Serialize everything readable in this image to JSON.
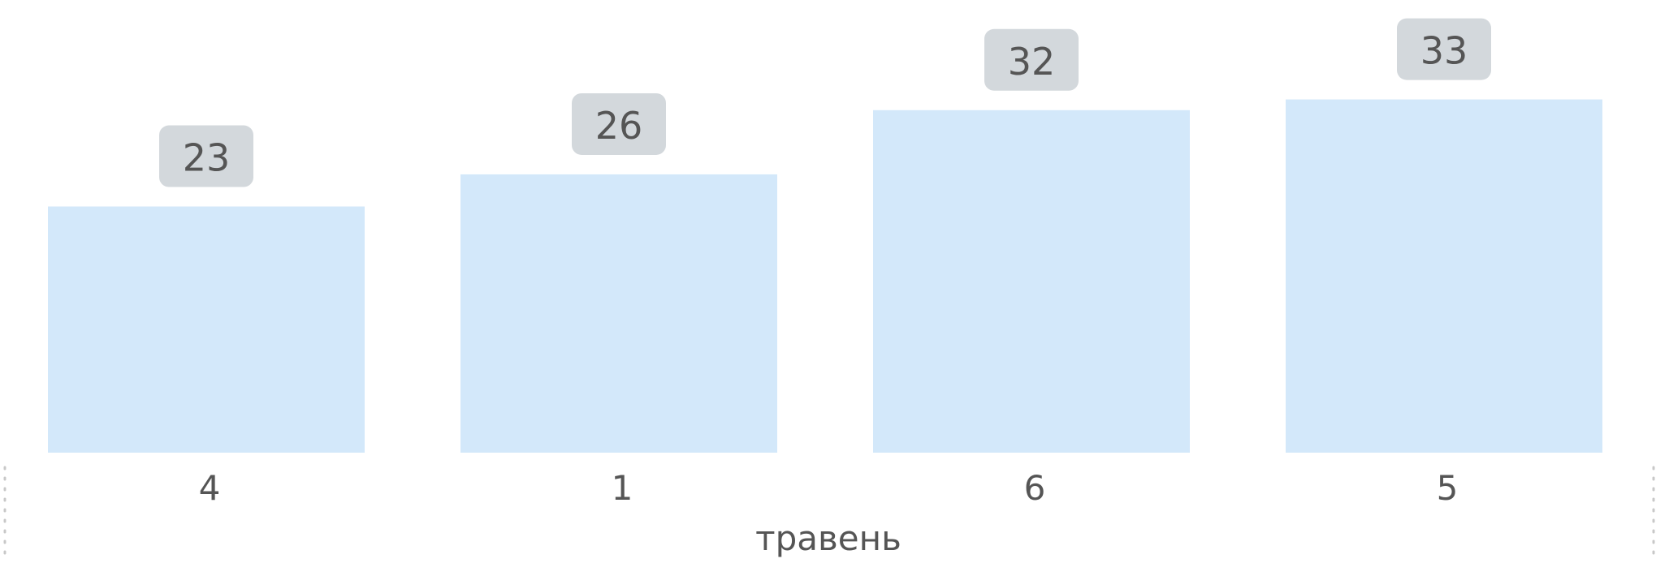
{
  "chart_data": {
    "type": "bar",
    "categories": [
      "4",
      "1",
      "6",
      "5"
    ],
    "values": [
      23,
      26,
      32,
      33
    ],
    "xlabel": "травень",
    "ylabel": "",
    "ylim": [
      0,
      36
    ],
    "grid": false,
    "legend": "none",
    "colors": {
      "bar": "#d3e8fa",
      "label_badge": "#d3d8dc",
      "text": "#555555"
    }
  }
}
